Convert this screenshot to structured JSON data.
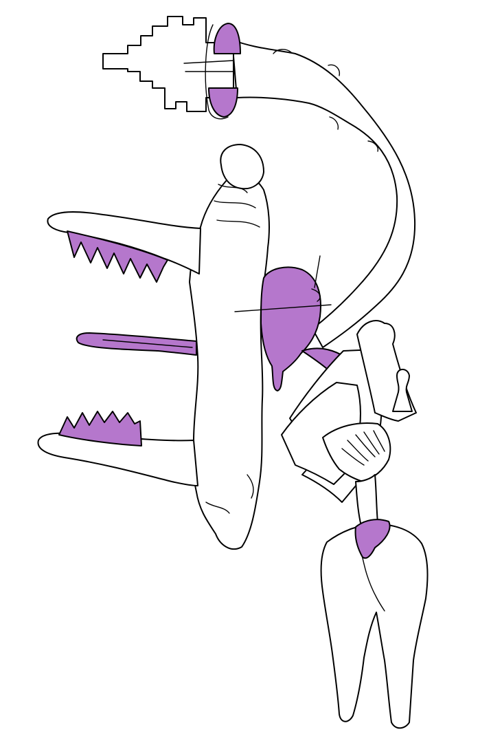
{
  "palette": {
    "background": "#ffffff",
    "ink": "#000000",
    "fill": "#ffffff",
    "accent": "#b577cc"
  },
  "drawing": {
    "style": "surreal line drawing with violet accents, rotated composition",
    "parts": [
      "stepped-block-ornament",
      "tube-connector",
      "curved-stalk",
      "central-trunk",
      "upper-jaw",
      "lower-jaw",
      "tongue",
      "violet-lobe",
      "angled-plates",
      "keyhole-tower",
      "fan-frill",
      "root-tooth"
    ]
  }
}
